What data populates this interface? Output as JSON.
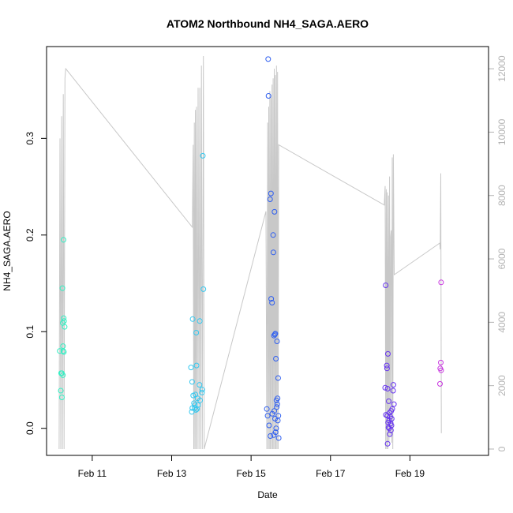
{
  "chart_data": {
    "type": "scatter",
    "title": "ATOM2 Northbound NH4_SAGA.AERO",
    "xlabel": "Date",
    "ylabel": "NH4_SAGA.AERO",
    "x_ticks": [
      {
        "date": "2017-02-11",
        "label": "Feb 11"
      },
      {
        "date": "2017-02-13",
        "label": "Feb 13"
      },
      {
        "date": "2017-02-15",
        "label": "Feb 15"
      },
      {
        "date": "2017-02-17",
        "label": "Feb 17"
      },
      {
        "date": "2017-02-19",
        "label": "Feb 19"
      }
    ],
    "xlim": [
      "2017-02-09T20:24",
      "2017-02-20T23:30"
    ],
    "ylim": [
      -0.028,
      0.395
    ],
    "y_ticks": [
      0.0,
      0.1,
      0.2,
      0.3
    ],
    "y_tick_labels": [
      "0.0",
      "0.1",
      "0.2",
      "0.3"
    ],
    "y2_label": "",
    "y2lim": [
      -200,
      12700
    ],
    "y2_ticks": [
      0,
      2000,
      4000,
      6000,
      8000,
      10000,
      12000
    ],
    "y2_tick_labels": [
      "0",
      "2000",
      "4000",
      "6000",
      "8000",
      "10000",
      "12000"
    ],
    "grid": false,
    "colors": {
      "altitude_line": "#c8c8c8",
      "axis": "#000000",
      "right_axis": "#b3b3b3"
    },
    "series": [
      {
        "color": "#33f0c4",
        "points": [
          [
            "2017-02-10T06:00",
            0.145
          ],
          [
            "2017-02-10T06:40",
            0.195
          ],
          [
            "2017-02-10T06:10",
            0.109
          ],
          [
            "2017-02-10T06:45",
            0.114
          ],
          [
            "2017-02-10T07:00",
            0.111
          ],
          [
            "2017-02-10T07:20",
            0.105
          ],
          [
            "2017-02-10T04:20",
            0.08
          ],
          [
            "2017-02-10T06:20",
            0.085
          ],
          [
            "2017-02-10T06:30",
            0.08
          ],
          [
            "2017-02-10T06:50",
            0.079
          ],
          [
            "2017-02-10T05:10",
            0.057
          ],
          [
            "2017-02-10T05:40",
            0.057
          ],
          [
            "2017-02-10T06:15",
            0.055
          ],
          [
            "2017-02-10T05:00",
            0.039
          ],
          [
            "2017-02-10T05:40",
            0.032
          ]
        ]
      },
      {
        "color": "#33c8f0",
        "points": [
          [
            "2017-02-13T18:50",
            0.282
          ],
          [
            "2017-02-13T19:10",
            0.144
          ],
          [
            "2017-02-13T12:40",
            0.113
          ],
          [
            "2017-02-13T17:00",
            0.111
          ],
          [
            "2017-02-13T14:50",
            0.099
          ],
          [
            "2017-02-13T15:00",
            0.065
          ],
          [
            "2017-02-13T11:40",
            0.063
          ],
          [
            "2017-02-13T12:20",
            0.048
          ],
          [
            "2017-02-13T16:50",
            0.045
          ],
          [
            "2017-02-13T18:30",
            0.04
          ],
          [
            "2017-02-13T18:20",
            0.037
          ],
          [
            "2017-02-13T14:20",
            0.035
          ],
          [
            "2017-02-13T13:00",
            0.034
          ],
          [
            "2017-02-13T15:40",
            0.031
          ],
          [
            "2017-02-13T17:10",
            0.029
          ],
          [
            "2017-02-13T13:30",
            0.026
          ],
          [
            "2017-02-13T14:00",
            0.024
          ],
          [
            "2017-02-13T16:00",
            0.024
          ],
          [
            "2017-02-13T12:30",
            0.021
          ],
          [
            "2017-02-13T13:50",
            0.021
          ],
          [
            "2017-02-13T12:10",
            0.017
          ],
          [
            "2017-02-13T14:40",
            0.019
          ],
          [
            "2017-02-13T15:20",
            0.02
          ]
        ]
      },
      {
        "color": "#2e5ef0",
        "points": [
          [
            "2017-02-15T10:20",
            0.382
          ],
          [
            "2017-02-15T10:30",
            0.344
          ],
          [
            "2017-02-15T12:00",
            0.243
          ],
          [
            "2017-02-15T11:30",
            0.237
          ],
          [
            "2017-02-15T14:10",
            0.224
          ],
          [
            "2017-02-15T13:20",
            0.2
          ],
          [
            "2017-02-15T13:30",
            0.182
          ],
          [
            "2017-02-15T12:10",
            0.134
          ],
          [
            "2017-02-15T12:40",
            0.13
          ],
          [
            "2017-02-15T14:40",
            0.098
          ],
          [
            "2017-02-15T13:50",
            0.096
          ],
          [
            "2017-02-15T14:20",
            0.097
          ],
          [
            "2017-02-15T15:40",
            0.09
          ],
          [
            "2017-02-15T15:00",
            0.072
          ],
          [
            "2017-02-15T16:20",
            0.052
          ],
          [
            "2017-02-15T16:00",
            0.031
          ],
          [
            "2017-02-15T15:20",
            0.029
          ],
          [
            "2017-02-15T15:50",
            0.025
          ],
          [
            "2017-02-15T15:30",
            0.022
          ],
          [
            "2017-02-15T09:30",
            0.02
          ],
          [
            "2017-02-15T14:00",
            0.018
          ],
          [
            "2017-02-15T12:50",
            0.015
          ],
          [
            "2017-02-15T10:00",
            0.013
          ],
          [
            "2017-02-15T16:30",
            0.013
          ],
          [
            "2017-02-15T14:30",
            0.01
          ],
          [
            "2017-02-15T16:10",
            0.008
          ],
          [
            "2017-02-15T10:50",
            0.003
          ],
          [
            "2017-02-15T15:10",
            0.0
          ],
          [
            "2017-02-15T14:50",
            -0.004
          ],
          [
            "2017-02-15T11:40",
            -0.008
          ],
          [
            "2017-02-15T13:40",
            -0.007
          ],
          [
            "2017-02-15T16:40",
            -0.01
          ]
        ]
      },
      {
        "color": "#6633f0",
        "points": [
          [
            "2017-02-18T09:20",
            0.148
          ],
          [
            "2017-02-18T10:40",
            0.077
          ],
          [
            "2017-02-18T10:00",
            0.065
          ],
          [
            "2017-02-18T10:10",
            0.062
          ],
          [
            "2017-02-18T09:00",
            0.042
          ],
          [
            "2017-02-18T10:30",
            0.041
          ],
          [
            "2017-02-18T11:10",
            0.028
          ],
          [
            "2017-02-18T14:00",
            0.045
          ],
          [
            "2017-02-18T13:50",
            0.039
          ],
          [
            "2017-02-18T14:20",
            0.025
          ],
          [
            "2017-02-18T13:20",
            0.02
          ],
          [
            "2017-02-18T12:40",
            0.018
          ],
          [
            "2017-02-18T11:40",
            0.016
          ],
          [
            "2017-02-18T09:30",
            0.014
          ],
          [
            "2017-02-18T10:20",
            0.013
          ],
          [
            "2017-02-18T12:00",
            0.012
          ],
          [
            "2017-02-18T13:00",
            0.01
          ],
          [
            "2017-02-18T11:20",
            0.008
          ],
          [
            "2017-02-18T10:50",
            0.006
          ],
          [
            "2017-02-18T12:20",
            0.005
          ],
          [
            "2017-02-18T12:50",
            0.003
          ],
          [
            "2017-02-18T11:00",
            0.001
          ],
          [
            "2017-02-18T11:30",
            0.0
          ],
          [
            "2017-02-18T12:30",
            -0.002
          ],
          [
            "2017-02-18T11:50",
            -0.006
          ],
          [
            "2017-02-18T10:30",
            -0.016
          ]
        ]
      },
      {
        "color": "#c833e0",
        "points": [
          [
            "2017-02-19T18:50",
            0.151
          ],
          [
            "2017-02-19T18:40",
            0.068
          ],
          [
            "2017-02-19T18:20",
            0.062
          ],
          [
            "2017-02-19T18:50",
            0.06
          ],
          [
            "2017-02-19T18:10",
            0.046
          ]
        ]
      }
    ],
    "altitude_line": [
      [
        "2017-02-10T04:00",
        0
      ],
      [
        "2017-02-10T04:30",
        9800
      ],
      [
        "2017-02-10T05:00",
        0
      ],
      [
        "2017-02-10T05:30",
        10500
      ],
      [
        "2017-02-10T06:00",
        0
      ],
      [
        "2017-02-10T06:30",
        11200
      ],
      [
        "2017-02-10T07:00",
        0
      ],
      [
        "2017-02-10T07:30",
        11700
      ],
      [
        "2017-02-10T08:00",
        12000
      ],
      [
        "2017-02-13T12:30",
        7000
      ],
      [
        "2017-02-13T13:00",
        9600
      ],
      [
        "2017-02-13T13:20",
        0
      ],
      [
        "2017-02-13T13:40",
        10300
      ],
      [
        "2017-02-13T14:00",
        0
      ],
      [
        "2017-02-13T14:20",
        10700
      ],
      [
        "2017-02-13T14:40",
        0
      ],
      [
        "2017-02-13T15:00",
        10800
      ],
      [
        "2017-02-13T15:30",
        0
      ],
      [
        "2017-02-13T16:00",
        11400
      ],
      [
        "2017-02-13T16:30",
        0
      ],
      [
        "2017-02-13T17:00",
        11400
      ],
      [
        "2017-02-13T17:30",
        0
      ],
      [
        "2017-02-13T18:00",
        12100
      ],
      [
        "2017-02-13T18:30",
        0
      ],
      [
        "2017-02-13T19:10",
        12400
      ],
      [
        "2017-02-13T19:40",
        0
      ],
      [
        "2017-02-15T09:00",
        7500
      ],
      [
        "2017-02-15T09:30",
        0
      ],
      [
        "2017-02-15T10:00",
        10300
      ],
      [
        "2017-02-15T10:20",
        0
      ],
      [
        "2017-02-15T10:40",
        10800
      ],
      [
        "2017-02-15T11:00",
        0
      ],
      [
        "2017-02-15T11:20",
        11300
      ],
      [
        "2017-02-15T11:40",
        0
      ],
      [
        "2017-02-15T12:00",
        11100
      ],
      [
        "2017-02-15T12:20",
        0
      ],
      [
        "2017-02-15T12:40",
        11500
      ],
      [
        "2017-02-15T13:00",
        0
      ],
      [
        "2017-02-15T13:20",
        11700
      ],
      [
        "2017-02-15T13:40",
        0
      ],
      [
        "2017-02-15T14:00",
        12000
      ],
      [
        "2017-02-15T14:20",
        0
      ],
      [
        "2017-02-15T14:40",
        11800
      ],
      [
        "2017-02-15T15:00",
        0
      ],
      [
        "2017-02-15T15:20",
        12100
      ],
      [
        "2017-02-15T15:40",
        0
      ],
      [
        "2017-02-15T16:00",
        11900
      ],
      [
        "2017-02-15T16:20",
        0
      ],
      [
        "2017-02-15T16:40",
        9600
      ],
      [
        "2017-02-18T08:30",
        7700
      ],
      [
        "2017-02-18T09:00",
        8300
      ],
      [
        "2017-02-18T09:20",
        0
      ],
      [
        "2017-02-18T09:40",
        8200
      ],
      [
        "2017-02-18T10:00",
        0
      ],
      [
        "2017-02-18T10:20",
        8100
      ],
      [
        "2017-02-18T10:40",
        0
      ],
      [
        "2017-02-18T11:00",
        8000
      ],
      [
        "2017-02-18T11:20",
        200
      ],
      [
        "2017-02-18T11:40",
        8600
      ],
      [
        "2017-02-18T12:00",
        400
      ],
      [
        "2017-02-18T12:20",
        6700
      ],
      [
        "2017-02-18T12:40",
        6900
      ],
      [
        "2017-02-18T13:00",
        200
      ],
      [
        "2017-02-18T13:20",
        9200
      ],
      [
        "2017-02-18T13:40",
        0
      ],
      [
        "2017-02-18T14:00",
        9300
      ],
      [
        "2017-02-18T14:30",
        5500
      ],
      [
        "2017-02-19T18:00",
        6500
      ],
      [
        "2017-02-19T18:20",
        6300
      ],
      [
        "2017-02-19T18:40",
        8700
      ],
      [
        "2017-02-19T19:00",
        500
      ]
    ]
  }
}
